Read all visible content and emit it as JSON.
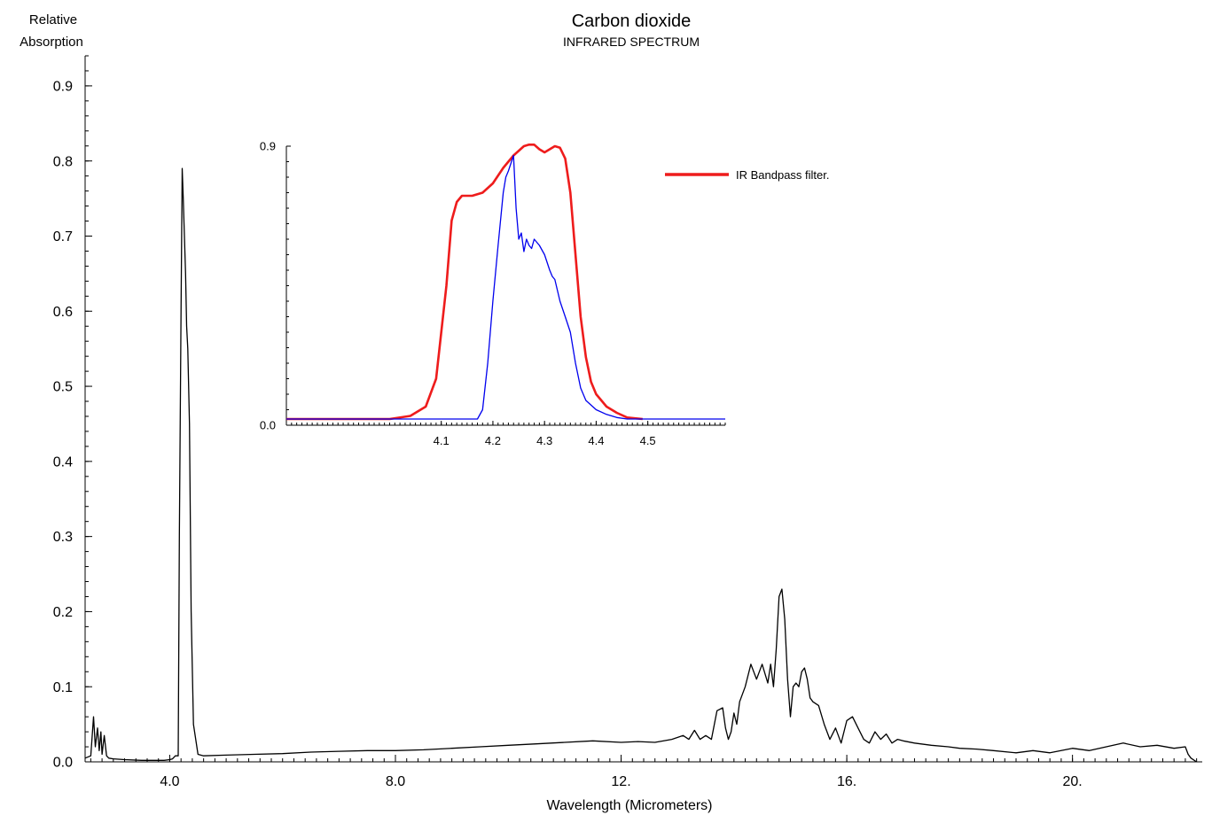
{
  "chart_data": [
    {
      "type": "line",
      "title": "Carbon dioxide",
      "subtitle": "INFRARED SPECTRUM",
      "xlabel": "Wavelength (Micrometers)",
      "ylabel_lines": [
        "Relative",
        "Absorption"
      ],
      "xlim": [
        2.5,
        22.3
      ],
      "ylim": [
        0.0,
        0.94
      ],
      "x_ticks": [
        4.0,
        8.0,
        12.0,
        16.0,
        20.0
      ],
      "x_tick_labels": [
        "4.0",
        "8.0",
        "12.",
        "16.",
        "20."
      ],
      "y_ticks": [
        0.0,
        0.1,
        0.2,
        0.3,
        0.4,
        0.5,
        0.6,
        0.7,
        0.8,
        0.9
      ],
      "y_tick_labels": [
        "0.0",
        "0.1",
        "0.2",
        "0.3",
        "0.4",
        "0.5",
        "0.6",
        "0.7",
        "0.8",
        "0.9"
      ],
      "grid": false,
      "colors": {
        "spectrum": "#000000"
      },
      "series": [
        {
          "x": [
            2.5,
            2.6,
            2.65,
            2.68,
            2.72,
            2.75,
            2.78,
            2.8,
            2.84,
            2.88,
            2.92,
            3.0,
            3.2,
            3.5,
            3.7,
            3.9,
            4.0,
            4.05,
            4.1,
            4.15,
            4.17,
            4.2,
            4.22,
            4.24,
            4.26,
            4.28,
            4.3,
            4.32,
            4.35,
            4.38,
            4.42,
            4.5,
            4.6,
            5.0,
            5.5,
            6.0,
            6.5,
            7.0,
            7.5,
            8.0,
            8.5,
            9.0,
            9.5,
            10.0,
            10.5,
            11.0,
            11.5,
            12.0,
            12.3,
            12.6,
            12.9,
            13.1,
            13.2,
            13.3,
            13.4,
            13.5,
            13.6,
            13.7,
            13.8,
            13.85,
            13.9,
            13.95,
            14.0,
            14.05,
            14.1,
            14.2,
            14.3,
            14.4,
            14.5,
            14.6,
            14.65,
            14.7,
            14.75,
            14.8,
            14.85,
            14.9,
            14.95,
            15.0,
            15.05,
            15.1,
            15.15,
            15.2,
            15.25,
            15.3,
            15.35,
            15.4,
            15.5,
            15.6,
            15.7,
            15.8,
            15.9,
            16.0,
            16.1,
            16.2,
            16.3,
            16.4,
            16.5,
            16.6,
            16.7,
            16.8,
            16.9,
            17.0,
            17.2,
            17.5,
            17.8,
            18.0,
            18.3,
            18.6,
            19.0,
            19.3,
            19.6,
            20.0,
            20.3,
            20.6,
            20.9,
            21.2,
            21.5,
            21.8,
            22.0,
            22.05,
            22.1,
            22.2
          ],
          "y": [
            0.005,
            0.008,
            0.06,
            0.02,
            0.045,
            0.015,
            0.04,
            0.01,
            0.035,
            0.008,
            0.005,
            0.004,
            0.003,
            0.002,
            0.002,
            0.002,
            0.003,
            0.004,
            0.008,
            0.008,
            0.3,
            0.6,
            0.79,
            0.75,
            0.7,
            0.65,
            0.58,
            0.55,
            0.45,
            0.2,
            0.05,
            0.01,
            0.008,
            0.009,
            0.01,
            0.011,
            0.013,
            0.014,
            0.015,
            0.015,
            0.016,
            0.018,
            0.02,
            0.022,
            0.024,
            0.026,
            0.028,
            0.026,
            0.027,
            0.026,
            0.03,
            0.035,
            0.03,
            0.042,
            0.03,
            0.035,
            0.03,
            0.068,
            0.072,
            0.045,
            0.03,
            0.04,
            0.065,
            0.05,
            0.08,
            0.1,
            0.13,
            0.11,
            0.13,
            0.105,
            0.13,
            0.1,
            0.15,
            0.22,
            0.23,
            0.19,
            0.11,
            0.06,
            0.1,
            0.105,
            0.1,
            0.12,
            0.125,
            0.11,
            0.085,
            0.08,
            0.075,
            0.05,
            0.03,
            0.045,
            0.025,
            0.055,
            0.06,
            0.045,
            0.03,
            0.025,
            0.04,
            0.03,
            0.037,
            0.025,
            0.03,
            0.028,
            0.025,
            0.022,
            0.02,
            0.018,
            0.017,
            0.015,
            0.012,
            0.015,
            0.012,
            0.018,
            0.015,
            0.02,
            0.025,
            0.02,
            0.022,
            0.018,
            0.02,
            0.01,
            0.005,
            0.0
          ]
        }
      ]
    },
    {
      "type": "line",
      "xlim": [
        3.8,
        4.65
      ],
      "ylim": [
        0.0,
        0.9
      ],
      "x_ticks": [
        4.1,
        4.2,
        4.3,
        4.4,
        4.5
      ],
      "x_tick_labels": [
        "4.1",
        "4.2",
        "4.3",
        "4.4",
        "4.5"
      ],
      "y_ticks": [
        0.0,
        0.9
      ],
      "y_tick_labels": [
        "0.0",
        "0.9"
      ],
      "grid": false,
      "legend_position": "top-right",
      "colors": {
        "filter": "#ee1c1c",
        "absorption": "#0000ee"
      },
      "series": [
        {
          "name": "IR Bandpass filter.",
          "color": "#ee1c1c",
          "x": [
            3.8,
            4.0,
            4.04,
            4.07,
            4.09,
            4.11,
            4.12,
            4.13,
            4.14,
            4.15,
            4.16,
            4.18,
            4.2,
            4.22,
            4.24,
            4.26,
            4.27,
            4.28,
            4.29,
            4.3,
            4.31,
            4.32,
            4.33,
            4.34,
            4.35,
            4.36,
            4.37,
            4.38,
            4.39,
            4.4,
            4.42,
            4.44,
            4.46,
            4.49
          ],
          "y": [
            0.02,
            0.02,
            0.03,
            0.06,
            0.15,
            0.45,
            0.66,
            0.72,
            0.74,
            0.74,
            0.74,
            0.75,
            0.78,
            0.83,
            0.87,
            0.9,
            0.905,
            0.905,
            0.89,
            0.88,
            0.89,
            0.9,
            0.895,
            0.86,
            0.75,
            0.55,
            0.35,
            0.22,
            0.14,
            0.1,
            0.06,
            0.04,
            0.025,
            0.02
          ]
        },
        {
          "name": "",
          "color": "#0000ee",
          "x": [
            3.8,
            4.1,
            4.17,
            4.18,
            4.19,
            4.2,
            4.21,
            4.22,
            4.225,
            4.23,
            4.24,
            4.245,
            4.25,
            4.255,
            4.26,
            4.265,
            4.27,
            4.275,
            4.28,
            4.29,
            4.3,
            4.31,
            4.315,
            4.32,
            4.33,
            4.34,
            4.35,
            4.36,
            4.37,
            4.38,
            4.4,
            4.42,
            4.44,
            4.46,
            4.5,
            4.65
          ],
          "y": [
            0.02,
            0.02,
            0.02,
            0.05,
            0.2,
            0.4,
            0.58,
            0.75,
            0.8,
            0.82,
            0.87,
            0.7,
            0.6,
            0.62,
            0.56,
            0.6,
            0.58,
            0.57,
            0.6,
            0.58,
            0.55,
            0.5,
            0.48,
            0.47,
            0.4,
            0.35,
            0.3,
            0.2,
            0.12,
            0.08,
            0.05,
            0.035,
            0.025,
            0.02,
            0.02,
            0.02
          ]
        }
      ]
    }
  ]
}
